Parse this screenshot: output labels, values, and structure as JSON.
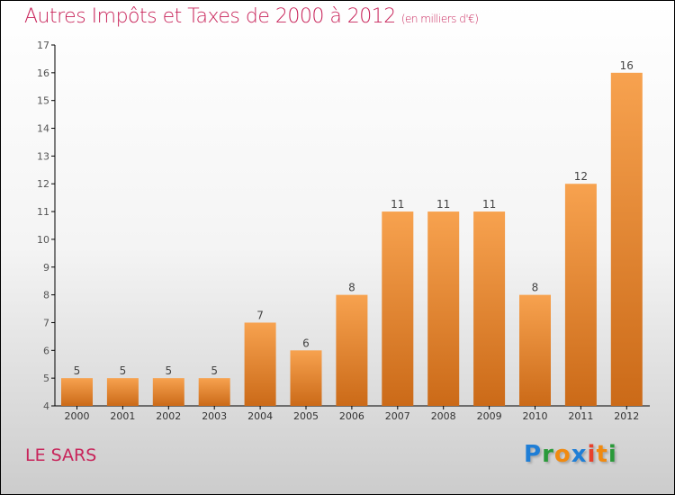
{
  "title": "Autres Impôts et Taxes de 2000 à 2012",
  "unit": "(en milliers d'€)",
  "city": "LE SARS",
  "logo": "Proxiti",
  "colors": {
    "bar_top": "#f7a24f",
    "bar_bottom": "#d06d1a",
    "title": "#c8245a"
  },
  "chart_data": {
    "type": "bar",
    "title": "Autres Impôts et Taxes de 2000 à 2012",
    "ylabel": "(en milliers d'€)",
    "categories": [
      "2000",
      "2001",
      "2002",
      "2003",
      "2004",
      "2005",
      "2006",
      "2007",
      "2008",
      "2009",
      "2010",
      "2011",
      "2012"
    ],
    "values": [
      5,
      5,
      5,
      5,
      7,
      6,
      8,
      11,
      11,
      11,
      8,
      12,
      16
    ],
    "ylim": [
      4,
      17
    ],
    "yticks": [
      4,
      5,
      6,
      7,
      8,
      9,
      10,
      11,
      12,
      13,
      14,
      15,
      16,
      17
    ]
  }
}
